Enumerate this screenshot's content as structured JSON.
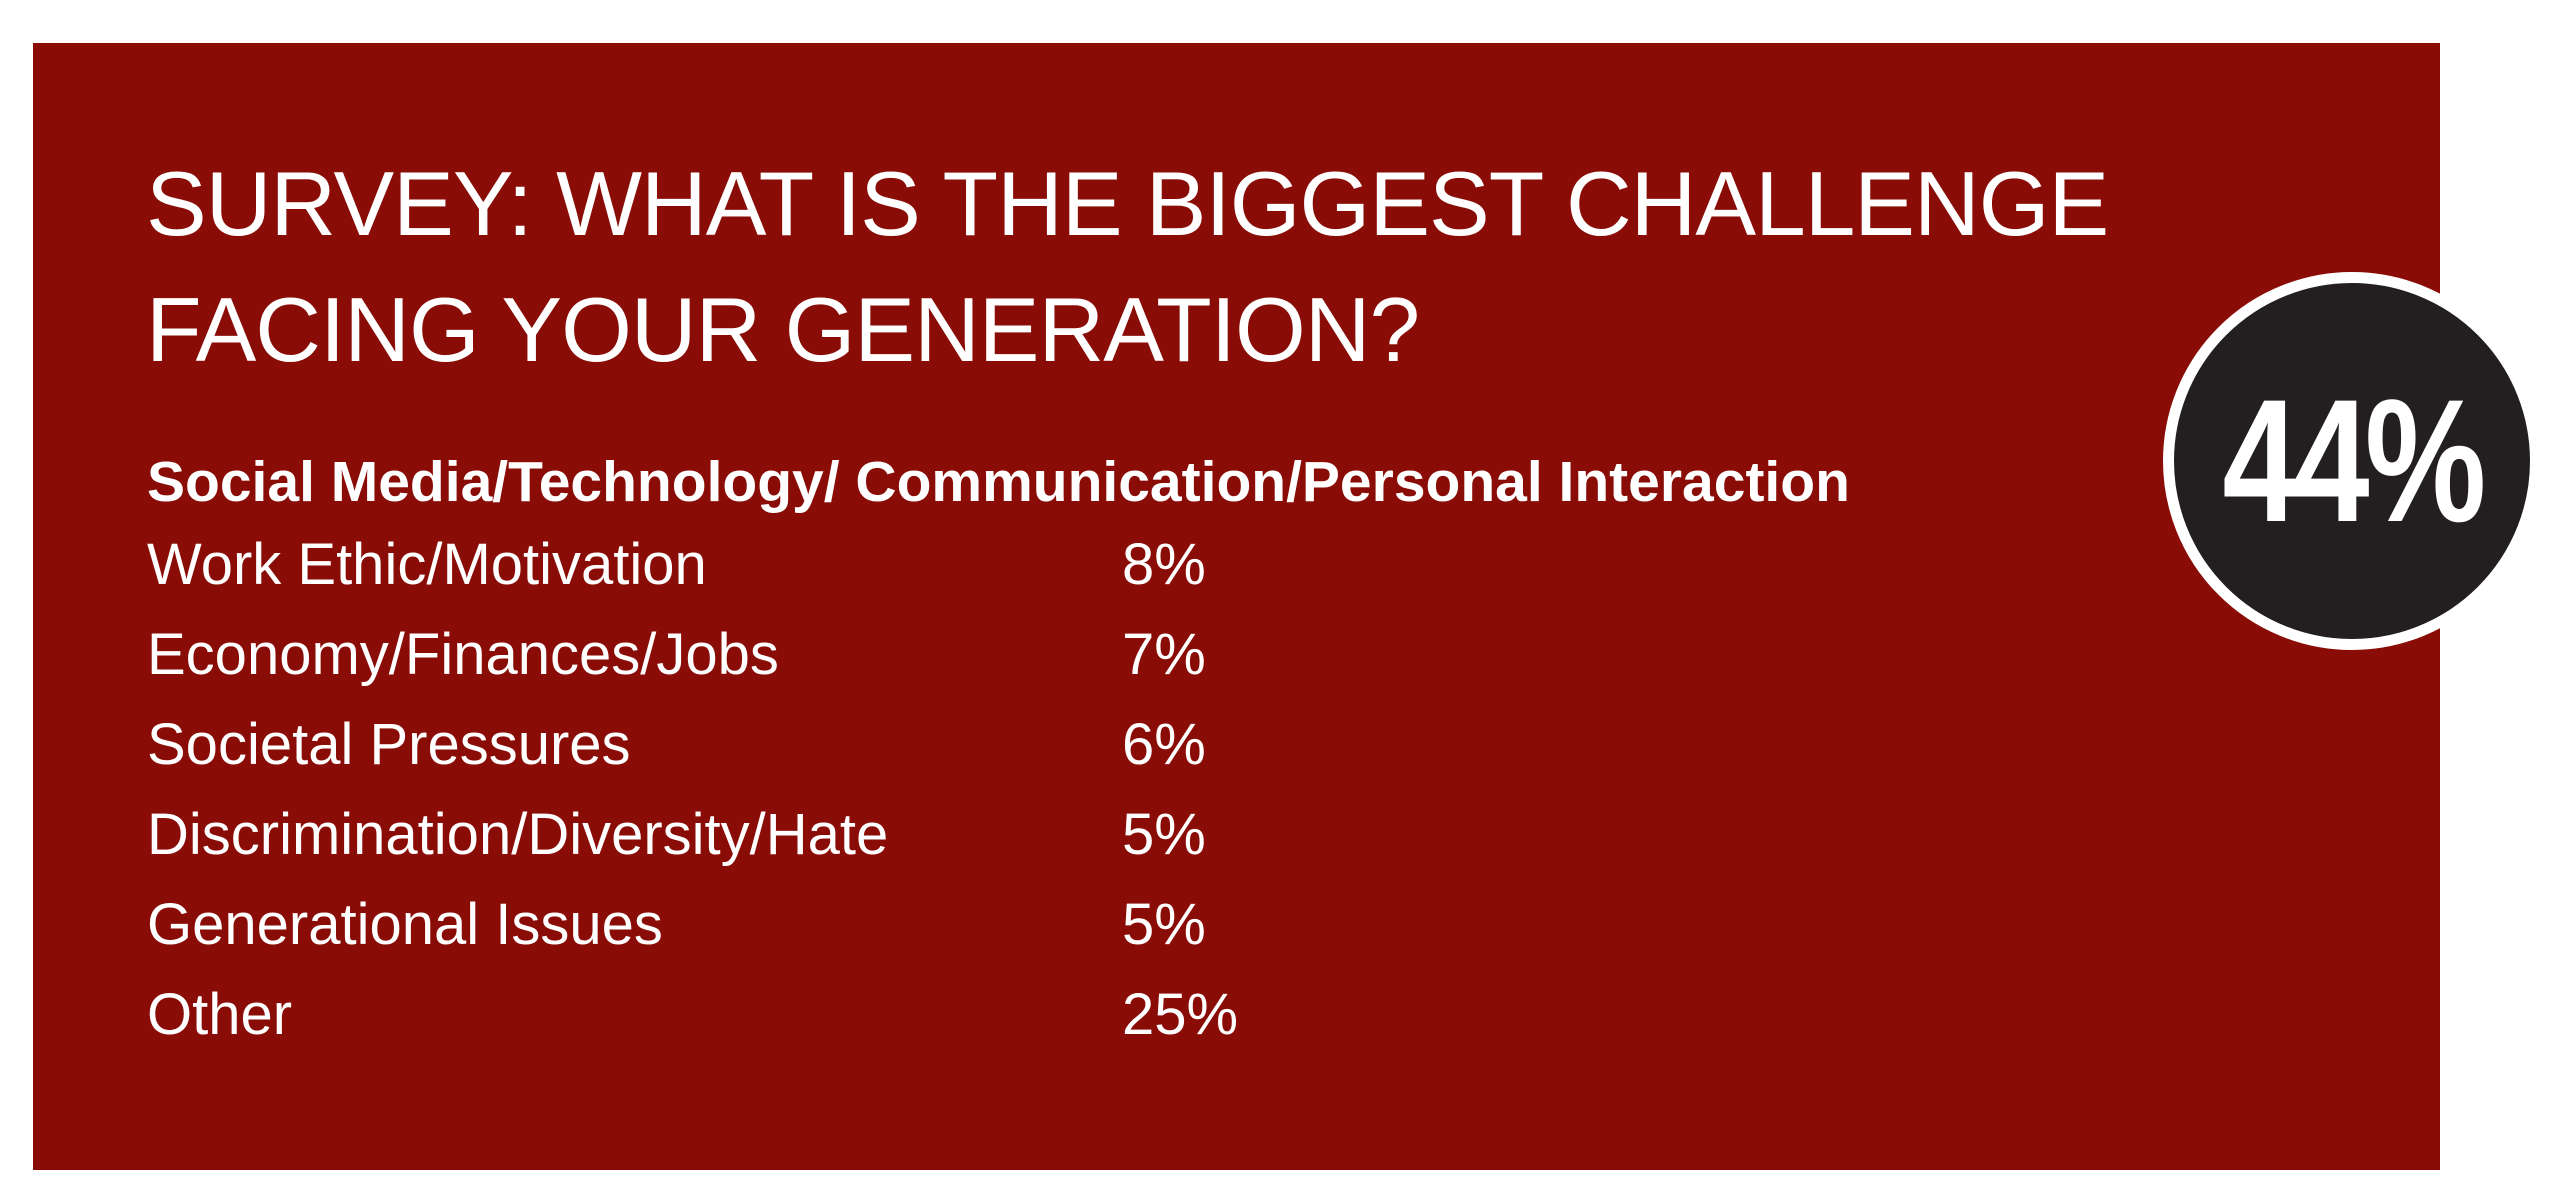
{
  "colors": {
    "background": "#8a0c06",
    "badge": "#231f20",
    "text": "#ffffff"
  },
  "chart_data": {
    "type": "table",
    "title_lines": [
      "SURVEY: WHAT IS THE BIGGEST CHALLENGE",
      "FACING YOUR GENERATION?"
    ],
    "highlight": {
      "category": "Social Media/Technology/ Communication/Personal Interaction",
      "value": 44,
      "label": "44%"
    },
    "rows": [
      {
        "category": "Work Ethic/Motivation",
        "value": 8,
        "label": "8%"
      },
      {
        "category": "Economy/Finances/Jobs",
        "value": 7,
        "label": "7%"
      },
      {
        "category": "Societal Pressures",
        "value": 6,
        "label": "6%"
      },
      {
        "category": "Discrimination/Diversity/Hate",
        "value": 5,
        "label": "5%"
      },
      {
        "category": "Generational Issues",
        "value": 5,
        "label": "5%"
      },
      {
        "category": "Other",
        "value": 25,
        "label": "25%"
      }
    ]
  }
}
